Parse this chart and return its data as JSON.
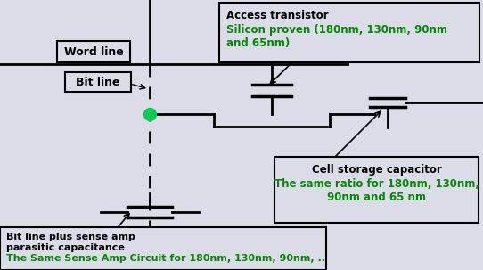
{
  "bg_color": "#dcdce8",
  "line_color": "#000000",
  "green_color": "#008800",
  "word_line_label": "Word line",
  "bit_line_label": "Bit line",
  "access_transistor_title": "Access transistor",
  "access_transistor_text": "Silicon proven (180nm, 130nm, 90nm\nand 65nm)",
  "cell_storage_title": "Cell storage capacitor",
  "cell_storage_text": "The same ratio for 180nm, 130nm,\n90nm and 65 nm",
  "bottom_title": "Bit line plus sense amp\nparasitic capacitance",
  "bottom_text": "The Same Sense Amp Circuit for 180nm, 130nm, 90nm, .."
}
